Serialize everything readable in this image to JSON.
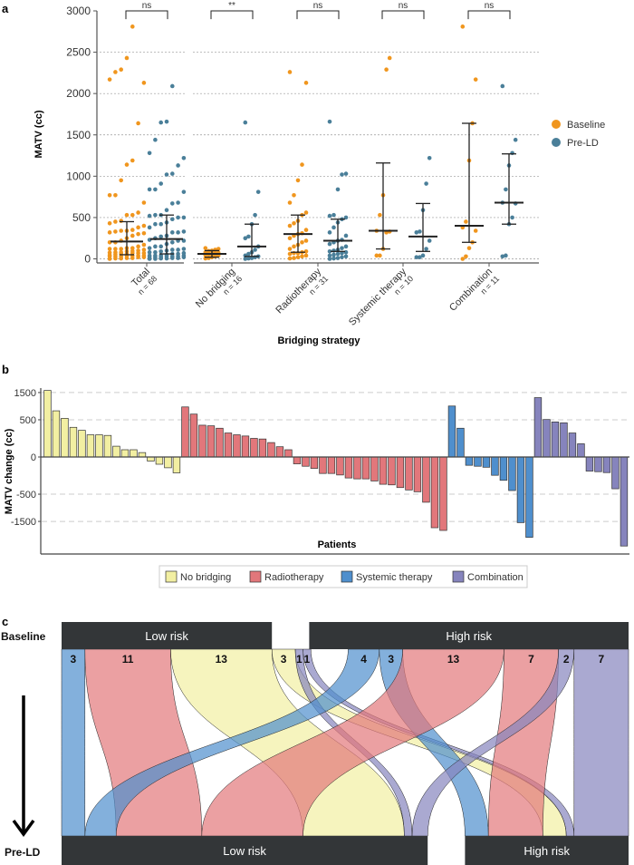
{
  "colors": {
    "baseline": "#f0961e",
    "preld": "#4a7f99",
    "no_bridging": "#f2efa2",
    "radiotherapy": "#e2777b",
    "systemic": "#4f8fcd",
    "combination": "#8684bd",
    "box": "#333638"
  },
  "chart_data": [
    {
      "panel": "a",
      "type": "scatter",
      "ylabel": "MATV (cc)",
      "xlabel": "Bridging strategy",
      "ylim": [
        0,
        3000
      ],
      "yticks": [
        "0",
        "500",
        "1000",
        "1500",
        "2000",
        "2500",
        "3000"
      ],
      "grid": true,
      "legend": {
        "placement": "right",
        "entries": [
          "Baseline",
          "Pre-LD"
        ]
      },
      "groups": [
        {
          "label": "Total",
          "n": "n = 68",
          "sig": "ns",
          "baseline": {
            "median": 210,
            "q1": 50,
            "q3": 450
          },
          "preld": {
            "median": 240,
            "q1": 60,
            "q3": 530
          }
        },
        {
          "label": "No bridging",
          "n": "n = 16",
          "sig": "**",
          "baseline": {
            "median": 60,
            "q1": 20,
            "q3": 100,
            "values": [
              130,
              120,
              110,
              100,
              95,
              80,
              75,
              70,
              60,
              55,
              45,
              40,
              30,
              20,
              10,
              5
            ]
          },
          "preld": {
            "median": 150,
            "q1": 30,
            "q3": 420,
            "values": [
              1650,
              810,
              530,
              420,
              270,
              250,
              150,
              110,
              80,
              60,
              40,
              30,
              20,
              10,
              5,
              0
            ]
          }
        },
        {
          "label": "Radiotherapy",
          "n": "n = 31",
          "sig": "ns",
          "baseline": {
            "median": 300,
            "q1": 80,
            "q3": 530,
            "values": [
              2260,
              2130,
              1140,
              950,
              770,
              680,
              560,
              530,
              460,
              430,
              400,
              350,
              310,
              300,
              280,
              250,
              220,
              200,
              170,
              150,
              120,
              90,
              80,
              70,
              70,
              60,
              40,
              30,
              20,
              10,
              5
            ]
          },
          "preld": {
            "median": 220,
            "q1": 90,
            "q3": 480,
            "values": [
              1660,
              1030,
              1020,
              840,
              530,
              520,
              500,
              480,
              440,
              380,
              320,
              280,
              230,
              220,
              200,
              180,
              150,
              130,
              110,
              100,
              90,
              80,
              70,
              60,
              50,
              40,
              30,
              20,
              10,
              5,
              0
            ]
          }
        },
        {
          "label": "Systemic therapy",
          "n": "n = 10",
          "sig": "ns",
          "baseline": {
            "median": 340,
            "q1": 120,
            "q3": 1160,
            "values": [
              2430,
              2290,
              770,
              530,
              340,
              330,
              320,
              120,
              40,
              40
            ]
          },
          "preld": {
            "median": 270,
            "q1": 90,
            "q3": 670,
            "values": [
              1220,
              910,
              590,
              330,
              320,
              220,
              120,
              40,
              20,
              20
            ]
          }
        },
        {
          "label": "Combination",
          "n": "n = 11",
          "sig": "ns",
          "baseline": {
            "median": 400,
            "q1": 200,
            "q3": 1640,
            "values": [
              2810,
              2170,
              1640,
              1190,
              450,
              380,
              340,
              200,
              130,
              30,
              0
            ]
          },
          "preld": {
            "median": 680,
            "q1": 420,
            "q3": 1270,
            "values": [
              2090,
              1440,
              1280,
              1130,
              840,
              680,
              670,
              500,
              420,
              40,
              30
            ]
          }
        }
      ]
    },
    {
      "panel": "b",
      "type": "bar",
      "ylabel": "MATV change (cc)",
      "xlabel": "Patients",
      "scale": "sqrt",
      "yticks": [
        "1500",
        "500",
        "0",
        "-500",
        "-1500"
      ],
      "ytick_values": [
        1500,
        500,
        0,
        -500,
        -1500
      ],
      "grid": true,
      "legend": {
        "placement": "bottom",
        "entries": [
          "No bridging",
          "Radiotherapy",
          "Systemic therapy",
          "Combination"
        ]
      },
      "series": [
        {
          "name": "No bridging",
          "values": [
            1600,
            770,
            540,
            318,
            257,
            178,
            178,
            168,
            42,
            19,
            19,
            7,
            -6,
            -19,
            -42,
            -91
          ]
        },
        {
          "name": "Radiotherapy",
          "values": [
            905,
            664,
            365,
            351,
            299,
            208,
            178,
            159,
            125,
            117,
            75,
            38,
            19,
            -17,
            -31,
            -47,
            -98,
            -98,
            -117,
            -159,
            -173,
            -173,
            -208,
            -269,
            -281,
            -338,
            -393,
            -437,
            -740,
            -1808,
            -1949
          ]
        },
        {
          "name": "Systemic therapy",
          "values": [
            938,
            299,
            -25,
            -31,
            -38,
            -121,
            -197,
            -407,
            -1557,
            -2332
          ]
        },
        {
          "name": "Combination",
          "values": [
            1273,
            507,
            444,
            422,
            208,
            63,
            -72,
            -78,
            -88,
            -365,
            -2864
          ]
        }
      ]
    },
    {
      "panel": "c",
      "type": "alluvial",
      "stages": [
        "Baseline",
        "Pre-LD"
      ],
      "categories": [
        "Low risk",
        "High risk"
      ],
      "flows": [
        {
          "from": "Low risk",
          "to": "Low risk",
          "strategy": "systemic",
          "count": 3,
          "label": "3"
        },
        {
          "from": "Low risk",
          "to": "Low risk",
          "strategy": "radiotherapy",
          "count": 11,
          "label": "11"
        },
        {
          "from": "Low risk",
          "to": "Low risk",
          "strategy": "no_bridging",
          "count": 13,
          "label": "13"
        },
        {
          "from": "Low risk",
          "to": "High risk",
          "strategy": "no_bridging",
          "count": 3,
          "label": "3"
        },
        {
          "from": "Low risk",
          "to": "Low risk",
          "strategy": "combination",
          "count": 1,
          "label": "1"
        },
        {
          "from": "Low risk",
          "to": "High risk",
          "strategy": "combination",
          "count": 1,
          "label": "1"
        },
        {
          "from": "High risk",
          "to": "Low risk",
          "strategy": "systemic",
          "count": 4,
          "label": "4"
        },
        {
          "from": "High risk",
          "to": "High risk",
          "strategy": "systemic",
          "count": 3,
          "label": "3"
        },
        {
          "from": "High risk",
          "to": "Low risk",
          "strategy": "radiotherapy",
          "count": 13,
          "label": "13"
        },
        {
          "from": "High risk",
          "to": "High risk",
          "strategy": "radiotherapy",
          "count": 7,
          "label": "7"
        },
        {
          "from": "High risk",
          "to": "Low risk",
          "strategy": "combination",
          "count": 2,
          "label": "2"
        },
        {
          "from": "High risk",
          "to": "High risk",
          "strategy": "combination",
          "count": 7,
          "label": "7"
        }
      ]
    }
  ],
  "panel_labels": [
    "a",
    "b",
    "c"
  ]
}
